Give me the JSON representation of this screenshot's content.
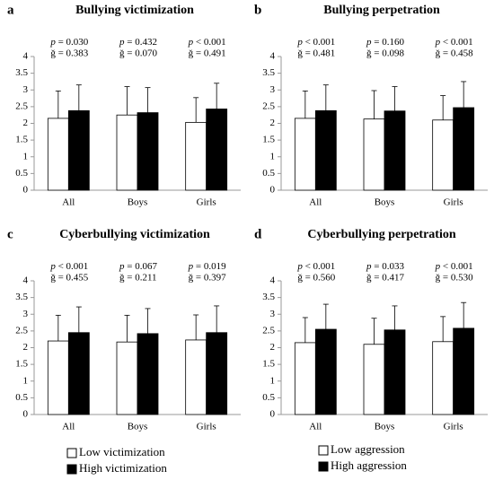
{
  "chart_data": [
    {
      "type": "bar",
      "panel": "a",
      "title": "Bullying victimization",
      "categories": [
        "All",
        "Boys",
        "Girls"
      ],
      "p_labels": [
        "p = 0.030",
        "p = 0.432",
        "p < 0.001"
      ],
      "g_labels": [
        "ğ = 0.383",
        "ğ = 0.070",
        "ğ = 0.491"
      ],
      "series": [
        {
          "color": "#ffffff",
          "values": [
            2.15,
            2.25,
            2.03
          ],
          "errors": [
            0.82,
            0.85,
            0.74
          ]
        },
        {
          "color": "#000000",
          "values": [
            2.38,
            2.32,
            2.43
          ],
          "errors": [
            0.77,
            0.75,
            0.77
          ]
        }
      ],
      "ylim": [
        0,
        4
      ],
      "yticks": [
        0,
        0.5,
        1,
        1.5,
        2,
        2.5,
        3,
        3.5,
        4
      ]
    },
    {
      "type": "bar",
      "panel": "b",
      "title": "Bullying perpetration",
      "categories": [
        "All",
        "Boys",
        "Girls"
      ],
      "p_labels": [
        "p < 0.001",
        "p = 0.160",
        "p < 0.001"
      ],
      "g_labels": [
        "ğ = 0.481",
        "ğ = 0.098",
        "ğ = 0.458"
      ],
      "series": [
        {
          "color": "#ffffff",
          "values": [
            2.15,
            2.13,
            2.1
          ],
          "errors": [
            0.82,
            0.85,
            0.73
          ]
        },
        {
          "color": "#000000",
          "values": [
            2.38,
            2.37,
            2.47
          ],
          "errors": [
            0.77,
            0.73,
            0.78
          ]
        }
      ],
      "ylim": [
        0,
        4
      ],
      "yticks": [
        0,
        0.5,
        1,
        1.5,
        2,
        2.5,
        3,
        3.5,
        4
      ]
    },
    {
      "type": "bar",
      "panel": "c",
      "title": "Cyberbullying victimization",
      "categories": [
        "All",
        "Boys",
        "Girls"
      ],
      "p_labels": [
        "p < 0.001",
        "p = 0.067",
        "p = 0.019"
      ],
      "g_labels": [
        "ğ = 0.455",
        "ğ = 0.211",
        "ğ = 0.397"
      ],
      "series": [
        {
          "name": "Low victimization",
          "color": "#ffffff",
          "values": [
            2.2,
            2.17,
            2.23
          ],
          "errors": [
            0.77,
            0.8,
            0.75
          ]
        },
        {
          "name": "High victimization",
          "color": "#000000",
          "values": [
            2.45,
            2.42,
            2.45
          ],
          "errors": [
            0.77,
            0.75,
            0.8
          ]
        }
      ],
      "ylim": [
        0,
        4
      ],
      "yticks": [
        0,
        0.5,
        1,
        1.5,
        2,
        2.5,
        3,
        3.5,
        4
      ]
    },
    {
      "type": "bar",
      "panel": "d",
      "title": "Cyberbullying perpetration",
      "categories": [
        "All",
        "Boys",
        "Girls"
      ],
      "p_labels": [
        "p < 0.001",
        "p = 0.033",
        "p < 0.001"
      ],
      "g_labels": [
        "ğ = 0.560",
        "ğ = 0.417",
        "ğ = 0.530"
      ],
      "series": [
        {
          "name": "Low aggression",
          "color": "#ffffff",
          "values": [
            2.15,
            2.1,
            2.18
          ],
          "errors": [
            0.75,
            0.78,
            0.75
          ]
        },
        {
          "name": "High aggression",
          "color": "#000000",
          "values": [
            2.55,
            2.53,
            2.58
          ],
          "errors": [
            0.75,
            0.72,
            0.77
          ]
        }
      ],
      "ylim": [
        0,
        4
      ],
      "yticks": [
        0,
        0.5,
        1,
        1.5,
        2,
        2.5,
        3,
        3.5,
        4
      ]
    }
  ]
}
